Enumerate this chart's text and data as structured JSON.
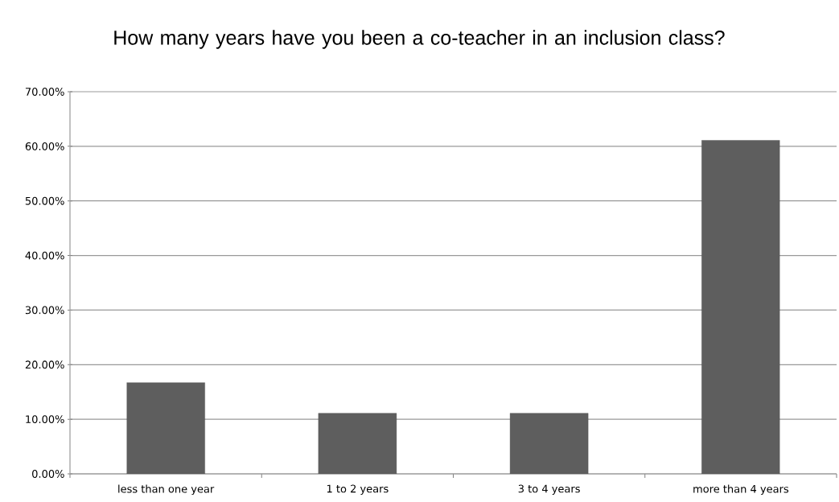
{
  "chart_data": {
    "type": "bar",
    "title": "How many years have you been a co-teacher in an inclusion class?",
    "categories": [
      "less than one year",
      "1 to 2 years",
      "3 to 4 years",
      "more than 4 years"
    ],
    "values": [
      16.7,
      11.1,
      11.1,
      61.1
    ],
    "color": "#5e5e5e",
    "ylim": [
      0,
      70
    ],
    "yticks": [
      {
        "value": 0,
        "label": "0.00%"
      },
      {
        "value": 10,
        "label": "10.00%"
      },
      {
        "value": 20,
        "label": "20.00%"
      },
      {
        "value": 30,
        "label": "30.00%"
      },
      {
        "value": 40,
        "label": "40.00%"
      },
      {
        "value": 50,
        "label": "50.00%"
      },
      {
        "value": 60,
        "label": "60.00%"
      },
      {
        "value": 70,
        "label": "70.00%"
      }
    ],
    "grid": "y"
  }
}
